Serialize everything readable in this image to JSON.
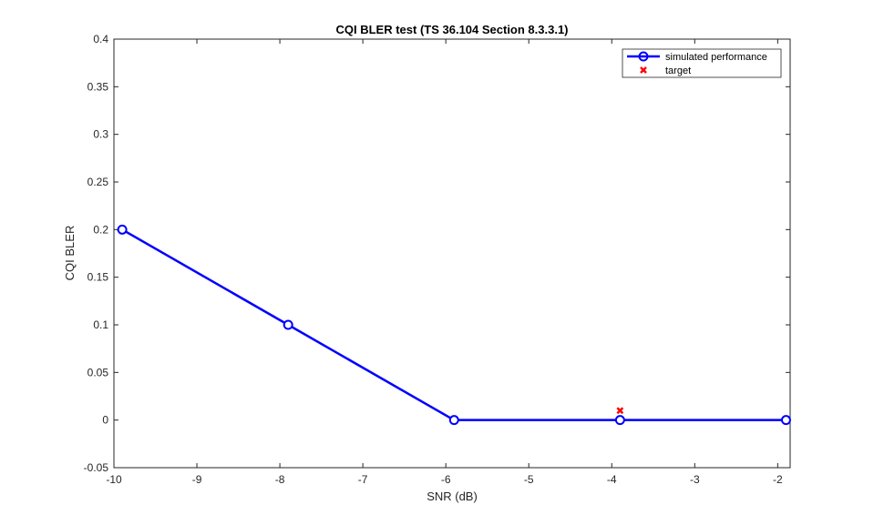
{
  "chart_data": {
    "type": "line",
    "title": "CQI BLER test (TS 36.104 Section 8.3.3.1)",
    "xlabel": "SNR (dB)",
    "ylabel": "CQI BLER",
    "xlim": [
      -10,
      -1.85
    ],
    "ylim": [
      -0.05,
      0.4
    ],
    "xticks": [
      -10,
      -9,
      -8,
      -7,
      -6,
      -5,
      -4,
      -3,
      -2
    ],
    "xtick_labels": [
      "-10",
      "-9",
      "-8",
      "-7",
      "-6",
      "-5",
      "-4",
      "-3",
      "-2"
    ],
    "yticks": [
      -0.05,
      0,
      0.05,
      0.1,
      0.15,
      0.2,
      0.25,
      0.3,
      0.35,
      0.4
    ],
    "ytick_labels": [
      "-0.05",
      "0",
      "0.05",
      "0.1",
      "0.15",
      "0.2",
      "0.25",
      "0.3",
      "0.35",
      "0.4"
    ],
    "grid": false,
    "legend_position": "top-right",
    "series": [
      {
        "name": "simulated performance",
        "style": "line-circle",
        "color": "#0000FF",
        "x": [
          -9.9,
          -7.9,
          -5.9,
          -3.9,
          -1.9
        ],
        "y": [
          0.2,
          0.1,
          0,
          0,
          0
        ]
      },
      {
        "name": "target",
        "style": "x-marker",
        "color": "#FF0000",
        "x": [
          -3.9
        ],
        "y": [
          0.01
        ]
      }
    ]
  }
}
